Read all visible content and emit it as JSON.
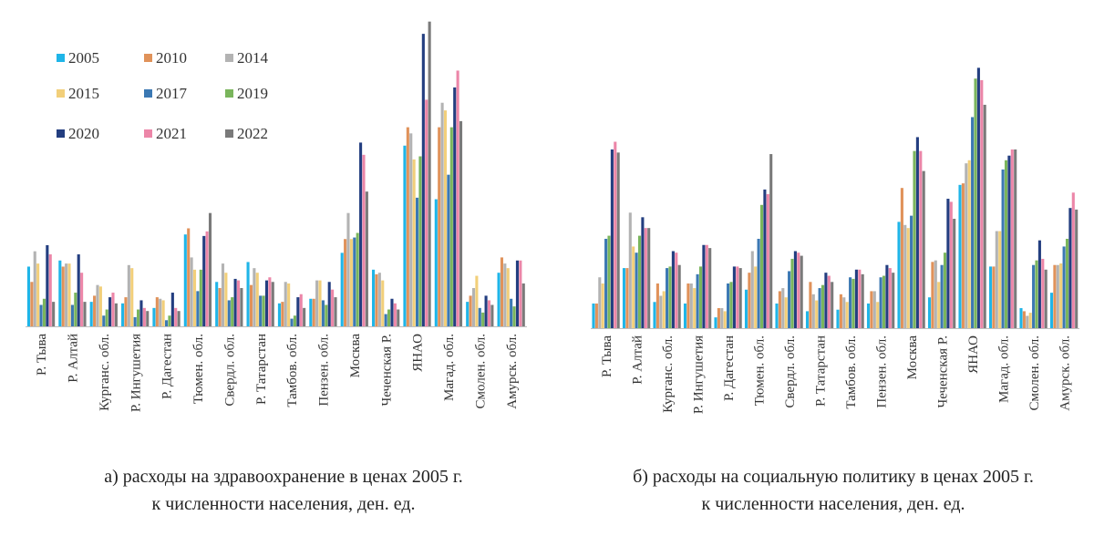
{
  "series_colors": [
    "#1fb5e8",
    "#e0925a",
    "#b3b3b3",
    "#f2cf7a",
    "#3b78b3",
    "#7ab55c",
    "#233e80",
    "#ec86a8",
    "#7a7a7a"
  ],
  "chart_data": [
    {
      "type": "bar",
      "caption_line1": "а) расходы на здравоохранение в ценах 2005 г.",
      "caption_line2": "к численности населения, ден. ед.",
      "legend_position": "top-left",
      "grid": false,
      "ylim": [
        0,
        1000
      ],
      "categories": [
        "Р. Тыва",
        "Р. Алтай",
        "Курганс. обл.",
        "Р. Ингушетия",
        "Р. Дагестан",
        "Тюмен. обл.",
        "Свердл. обл.",
        "Р. Татарстан",
        "Тамбов. обл.",
        "Пензен. обл.",
        "Москва",
        "Чеченская Р.",
        "ЯНАО",
        "Магад. обл.",
        "Смолен. обл.",
        "Амурск. обл."
      ],
      "series": [
        {
          "name": "2005",
          "values": [
            195,
            215,
            80,
            75,
            60,
            300,
            145,
            210,
            75,
            90,
            240,
            185,
            590,
            415,
            80,
            175
          ]
        },
        {
          "name": "2010",
          "values": [
            145,
            195,
            100,
            95,
            95,
            320,
            125,
            135,
            80,
            90,
            285,
            170,
            650,
            650,
            100,
            225
          ]
        },
        {
          "name": "2014",
          "values": [
            245,
            205,
            135,
            200,
            90,
            225,
            205,
            190,
            145,
            150,
            370,
            175,
            630,
            730,
            125,
            205
          ]
        },
        {
          "name": "2015",
          "values": [
            205,
            205,
            130,
            190,
            85,
            185,
            175,
            175,
            140,
            150,
            285,
            150,
            545,
            705,
            165,
            190
          ]
        },
        {
          "name": "2017",
          "values": [
            70,
            70,
            35,
            30,
            20,
            115,
            85,
            100,
            25,
            85,
            290,
            40,
            420,
            495,
            60,
            90
          ]
        },
        {
          "name": "2019",
          "values": [
            90,
            110,
            55,
            55,
            35,
            185,
            95,
            100,
            35,
            70,
            305,
            55,
            555,
            650,
            45,
            65
          ]
        },
        {
          "name": "2020",
          "values": [
            265,
            235,
            95,
            85,
            110,
            295,
            155,
            150,
            95,
            145,
            600,
            90,
            955,
            780,
            100,
            215
          ]
        },
        {
          "name": "2021",
          "values": [
            235,
            175,
            110,
            60,
            60,
            310,
            150,
            160,
            105,
            120,
            560,
            75,
            740,
            835,
            85,
            215
          ]
        },
        {
          "name": "2022",
          "values": [
            80,
            80,
            75,
            50,
            50,
            370,
            125,
            145,
            60,
            95,
            440,
            55,
            995,
            670,
            70,
            140
          ]
        }
      ]
    },
    {
      "type": "bar",
      "caption_line1": "б) расходы на социальную политику в ценах 2005 г.",
      "caption_line2": "к численности населения, ден. ед.",
      "grid": false,
      "ylim": [
        0,
        1000
      ],
      "categories": [
        "Р. Тыва",
        "Р. Алтай",
        "Курганс. обл.",
        "Р. Ингушетия",
        "Р. Дагестан",
        "Тюмен. обл.",
        "Свердл. обл.",
        "Р. Татарстан",
        "Тамбов. обл.",
        "Пензен. обл.",
        "Москва",
        "Чеченская Р.",
        "ЯНАО",
        "Магад. обл.",
        "Смолен. обл.",
        "Амурск. обл."
      ],
      "series": [
        {
          "name": "2005",
          "values": [
            80,
            195,
            85,
            80,
            35,
            125,
            80,
            55,
            60,
            80,
            345,
            100,
            465,
            200,
            65,
            115
          ]
        },
        {
          "name": "2010",
          "values": [
            80,
            195,
            145,
            145,
            65,
            180,
            120,
            150,
            110,
            120,
            455,
            215,
            470,
            200,
            55,
            205
          ]
        },
        {
          "name": "2014",
          "values": [
            165,
            375,
            105,
            145,
            65,
            250,
            130,
            110,
            100,
            120,
            335,
            220,
            535,
            315,
            40,
            205
          ]
        },
        {
          "name": "2015",
          "values": [
            145,
            265,
            120,
            130,
            55,
            200,
            100,
            90,
            85,
            85,
            325,
            150,
            545,
            315,
            50,
            210
          ]
        },
        {
          "name": "2017",
          "values": [
            290,
            245,
            195,
            175,
            145,
            290,
            185,
            130,
            165,
            165,
            365,
            205,
            685,
            515,
            205,
            265
          ]
        },
        {
          "name": "2019",
          "values": [
            300,
            300,
            200,
            200,
            150,
            400,
            225,
            140,
            160,
            170,
            575,
            245,
            810,
            545,
            220,
            290
          ]
        },
        {
          "name": "2020",
          "values": [
            580,
            360,
            250,
            270,
            200,
            450,
            250,
            180,
            190,
            205,
            620,
            420,
            845,
            560,
            285,
            390
          ]
        },
        {
          "name": "2021",
          "values": [
            605,
            325,
            245,
            270,
            200,
            435,
            245,
            170,
            190,
            195,
            575,
            410,
            805,
            580,
            225,
            440
          ]
        },
        {
          "name": "2022",
          "values": [
            570,
            325,
            205,
            260,
            195,
            565,
            235,
            150,
            175,
            180,
            510,
            355,
            725,
            580,
            190,
            385
          ]
        }
      ]
    }
  ]
}
